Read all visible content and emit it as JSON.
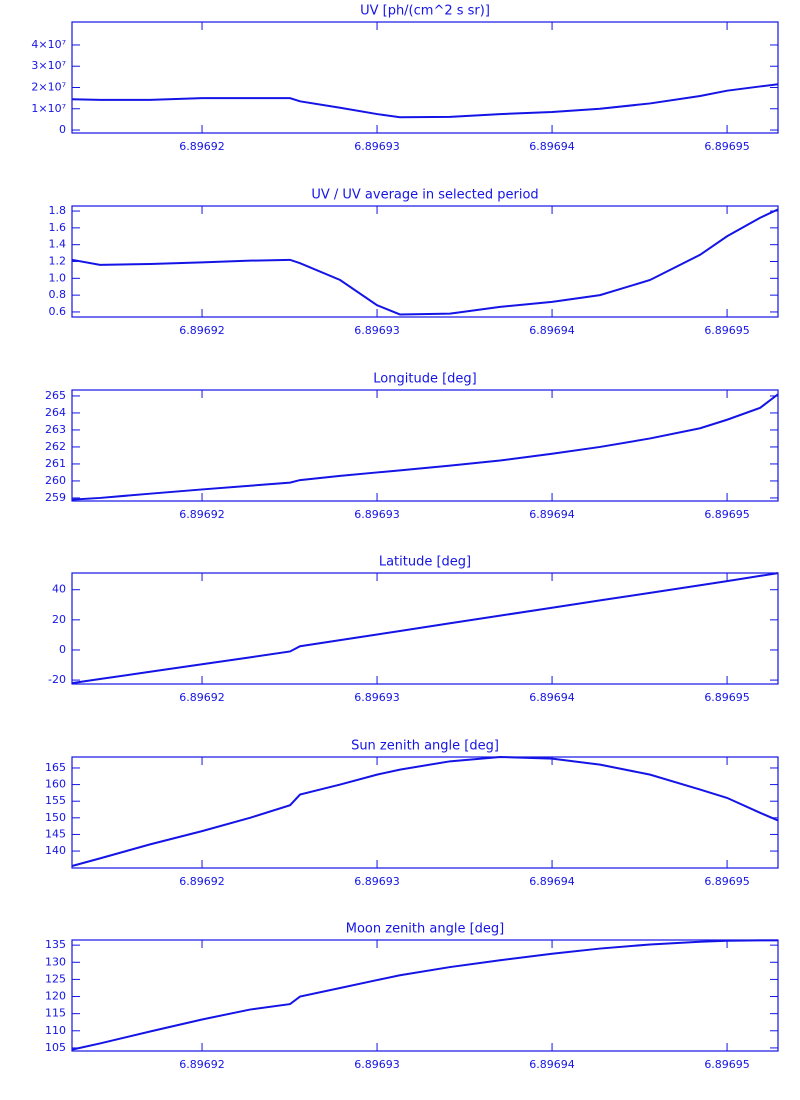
{
  "chart_data": [
    {
      "type": "line",
      "title": "UV [ph/(cm^2 s sr)]",
      "color": "#1414e6",
      "x": [
        6.89691257,
        6.89691417,
        6.89691703,
        6.89692,
        6.89692274,
        6.89692503,
        6.8969256,
        6.89692789,
        6.89693,
        6.89693131,
        6.89693417,
        6.89693703,
        6.89694,
        6.89694274,
        6.8969456,
        6.89694846,
        6.89695,
        6.89695189,
        6.89695291
      ],
      "values": [
        14500000,
        14200000,
        14200000,
        15000000,
        15000000,
        15000000,
        13500000,
        10500000,
        7500000,
        6000000,
        6200000,
        7500000,
        8500000,
        10000000,
        12500000,
        16000000,
        18500000,
        20500000,
        21500000
      ],
      "xlim": [
        6.89691257,
        6.89695291
      ],
      "xticks": [
        6.89692,
        6.89693,
        6.89694,
        6.89695
      ],
      "ylim": [
        -1400000,
        50800000
      ],
      "yticks": [
        0,
        {
          "value": 10000000,
          "label": "1×10⁷"
        },
        {
          "value": 20000000,
          "label": "2×10⁷"
        },
        {
          "value": 30000000,
          "label": "3×10⁷"
        },
        {
          "value": 40000000,
          "label": "4×10⁷"
        }
      ]
    },
    {
      "type": "line",
      "title": "UV / UV average in selected period",
      "color": "#1414e6",
      "x": [
        6.89691257,
        6.89691417,
        6.89691703,
        6.89692,
        6.89692274,
        6.89692503,
        6.8969256,
        6.89692789,
        6.89693,
        6.89693131,
        6.89693417,
        6.89693703,
        6.89694,
        6.89694274,
        6.8969456,
        6.89694846,
        6.89695,
        6.89695189,
        6.89695291
      ],
      "values": [
        1.22,
        1.16,
        1.17,
        1.19,
        1.21,
        1.22,
        1.18,
        0.98,
        0.68,
        0.57,
        0.58,
        0.66,
        0.72,
        0.8,
        0.98,
        1.28,
        1.5,
        1.72,
        1.82
      ],
      "xlim": [
        6.89691257,
        6.89695291
      ],
      "xticks": [
        6.89692,
        6.89693,
        6.89694,
        6.89695
      ],
      "ylim": [
        0.54,
        1.86
      ],
      "yticks": [
        0.6,
        0.8,
        {
          "value": 1,
          "label": "1.0"
        },
        1.2,
        1.4,
        1.6,
        1.8
      ]
    },
    {
      "type": "line",
      "title": "Longitude [deg]",
      "color": "#1414e6",
      "x": [
        6.89691257,
        6.89691417,
        6.89691703,
        6.89692,
        6.89692274,
        6.89692503,
        6.8969256,
        6.89692789,
        6.89693,
        6.89693131,
        6.89693417,
        6.89693703,
        6.89694,
        6.89694274,
        6.8969456,
        6.89694846,
        6.89695,
        6.89695189,
        6.89695291
      ],
      "values": [
        258.9,
        259.0,
        259.25,
        259.5,
        259.72,
        259.9,
        260.05,
        260.3,
        260.5,
        260.62,
        260.9,
        261.2,
        261.6,
        262.0,
        262.5,
        263.1,
        263.6,
        264.3,
        265.1
      ],
      "xlim": [
        6.89691257,
        6.89695291
      ],
      "xticks": [
        6.89692,
        6.89693,
        6.89694,
        6.89695
      ],
      "ylim": [
        258.82,
        265.35
      ],
      "yticks": [
        259,
        260,
        261,
        262,
        263,
        264,
        265
      ]
    },
    {
      "type": "line",
      "title": "Latitude [deg]",
      "color": "#1414e6",
      "x": [
        6.89691257,
        6.89691417,
        6.89691703,
        6.89692,
        6.89692274,
        6.89692503,
        6.8969256,
        6.89692789,
        6.89693,
        6.89693131,
        6.89693417,
        6.89693703,
        6.89694,
        6.89694274,
        6.8969456,
        6.89694846,
        6.89695,
        6.89695189,
        6.89695291
      ],
      "values": [
        -22,
        -19.3,
        -14.5,
        -9.5,
        -4.9,
        -1,
        2.5,
        6.5,
        10.3,
        12.6,
        17.7,
        22.8,
        28,
        32.9,
        37.9,
        43,
        45.7,
        49.2,
        51
      ],
      "xlim": [
        6.89691257,
        6.89695291
      ],
      "xticks": [
        6.89692,
        6.89693,
        6.89694,
        6.89695
      ],
      "ylim": [
        -22.6,
        51.1
      ],
      "yticks": [
        -20,
        0,
        20,
        40
      ]
    },
    {
      "type": "line",
      "title": "Sun zenith angle [deg]",
      "color": "#1414e6",
      "x": [
        6.89691257,
        6.89691417,
        6.89691703,
        6.89692,
        6.89692274,
        6.89692503,
        6.8969256,
        6.89692789,
        6.89693,
        6.89693131,
        6.89693417,
        6.89693703,
        6.89694,
        6.89694274,
        6.8969456,
        6.89694846,
        6.89695,
        6.89695189,
        6.89695291
      ],
      "values": [
        135.5,
        137.8,
        142,
        146,
        150,
        153.8,
        157,
        160,
        163,
        164.5,
        167,
        168.3,
        167.8,
        166,
        163,
        158.5,
        156,
        151.5,
        149.2
      ],
      "xlim": [
        6.89691257,
        6.89695291
      ],
      "xticks": [
        6.89692,
        6.89693,
        6.89694,
        6.89695
      ],
      "ylim": [
        134.9,
        168.3
      ],
      "yticks": [
        140,
        145,
        150,
        155,
        160,
        165
      ]
    },
    {
      "type": "line",
      "title": "Moon zenith angle [deg]",
      "color": "#1414e6",
      "x": [
        6.89691257,
        6.89691417,
        6.89691703,
        6.89692,
        6.89692274,
        6.89692503,
        6.8969256,
        6.89692789,
        6.89693,
        6.89693131,
        6.89693417,
        6.89693703,
        6.89694,
        6.89694274,
        6.8969456,
        6.89694846,
        6.89695,
        6.89695189,
        6.89695291
      ],
      "values": [
        104.5,
        106.3,
        109.8,
        113.3,
        116.2,
        117.8,
        120,
        122.5,
        124.8,
        126.2,
        128.6,
        130.6,
        132.5,
        134,
        135.2,
        136,
        136.3,
        136.4,
        136.4
      ],
      "xlim": [
        6.89691257,
        6.89695291
      ],
      "xticks": [
        6.89692,
        6.89693,
        6.89694,
        6.89695
      ],
      "ylim": [
        104.1,
        136.5
      ],
      "yticks": [
        105,
        110,
        115,
        120,
        125,
        130,
        135
      ]
    }
  ]
}
